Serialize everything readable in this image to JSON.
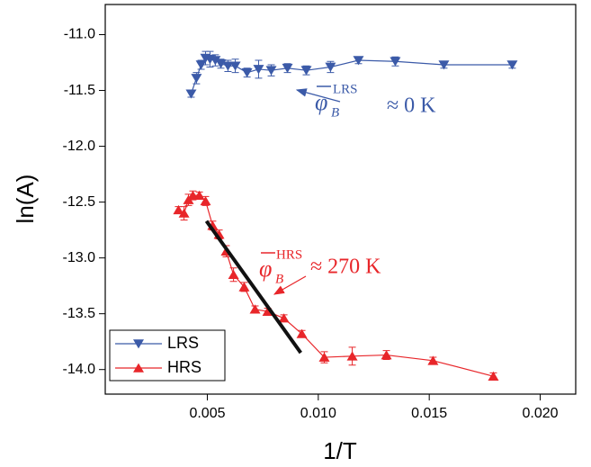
{
  "chart_data": {
    "type": "line",
    "x_label": "1/T",
    "y_label": "ln(A)",
    "xlim": [
      0.0004,
      0.0216
    ],
    "ylim": [
      -14.22,
      -10.73
    ],
    "xticks": [
      0.005,
      {
        "value": 0.01,
        "label": "0.010"
      },
      0.015,
      {
        "value": 0.02,
        "label": "0.020"
      }
    ],
    "yticks": [
      {
        "value": -11,
        "label": "-11.0"
      },
      -11.5,
      {
        "value": -12,
        "label": "-12.0"
      },
      -12.5,
      {
        "value": -13,
        "label": "-13.0"
      },
      -13.5,
      {
        "value": -14,
        "label": "-14.0"
      }
    ],
    "legend": "lower left",
    "series": [
      {
        "name": "LRS",
        "color": "#3b5aa8",
        "marker": "down",
        "x": [
          0.00427,
          0.00451,
          0.00472,
          0.00492,
          0.00512,
          0.00536,
          0.00561,
          0.00593,
          0.00626,
          0.00679,
          0.00731,
          0.00788,
          0.00861,
          0.00946,
          0.01055,
          0.01181,
          0.01347,
          0.01566,
          0.01874
        ],
        "values": [
          -11.53,
          -11.39,
          -11.27,
          -11.21,
          -11.22,
          -11.23,
          -11.26,
          -11.28,
          -11.28,
          -11.34,
          -11.31,
          -11.32,
          -11.3,
          -11.32,
          -11.29,
          -11.23,
          -11.24,
          -11.27,
          -11.27
        ],
        "errors": [
          0.03,
          0.05,
          0.04,
          0.06,
          0.07,
          0.05,
          0.04,
          0.05,
          0.06,
          0.04,
          0.08,
          0.05,
          0.04,
          0.04,
          0.05,
          0.03,
          0.04,
          0.03,
          0.03
        ]
      },
      {
        "name": "HRS",
        "color": "#e8262a",
        "marker": "up",
        "x": [
          0.0037,
          0.00395,
          0.00415,
          0.00435,
          0.00464,
          0.00492,
          0.00524,
          0.00553,
          0.00585,
          0.00618,
          0.00666,
          0.00715,
          0.00772,
          0.00845,
          0.00926,
          0.01027,
          0.01153,
          0.01307,
          0.01517,
          0.01789
        ],
        "values": [
          -12.57,
          -12.6,
          -12.48,
          -12.44,
          -12.44,
          -12.49,
          -12.71,
          -12.79,
          -12.94,
          -13.15,
          -13.26,
          -13.46,
          -13.48,
          -13.54,
          -13.68,
          -13.89,
          -13.88,
          -13.87,
          -13.92,
          -14.06
        ],
        "errors": [
          0.03,
          0.06,
          0.05,
          0.04,
          0.03,
          0.04,
          0.04,
          0.04,
          0.05,
          0.06,
          0.04,
          0.03,
          0.03,
          0.03,
          0.03,
          0.05,
          0.08,
          0.04,
          0.03,
          0.03
        ]
      }
    ],
    "fit_line": {
      "color": "#111111",
      "x": [
        0.00496,
        0.00921
      ],
      "values": [
        -12.67,
        -13.85
      ]
    },
    "annotations": [
      {
        "symbol": "φ",
        "sub": "B",
        "sup": "LRS",
        "text": "≈ 0 K"
      },
      {
        "symbol": "φ",
        "sub": "B",
        "sup": "HRS",
        "text": "≈ 270 K"
      }
    ]
  }
}
